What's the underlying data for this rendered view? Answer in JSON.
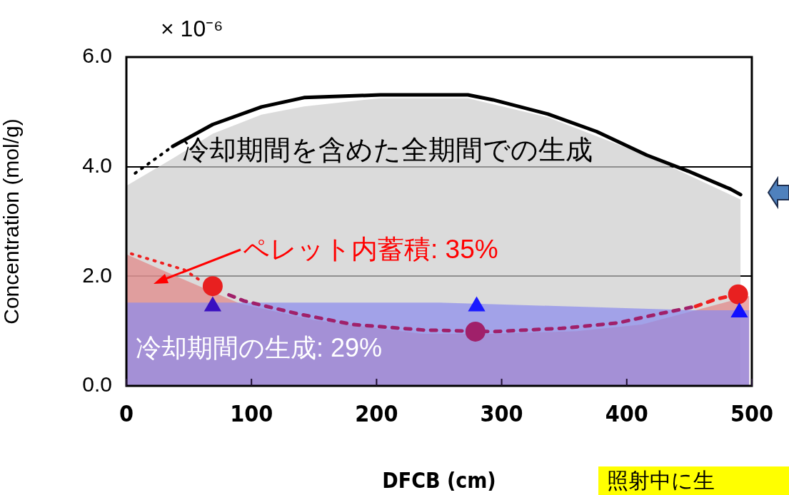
{
  "chart_data": {
    "type": "area",
    "xlabel": "DFCB (cm)",
    "ylabel": "Concentration (mol/g)",
    "xlim": [
      0,
      500
    ],
    "xticks": [
      0,
      100,
      200,
      300,
      400,
      500
    ],
    "ylim": [
      0,
      6
    ],
    "yticks": [
      {
        "value": 0,
        "label": "0.0"
      },
      {
        "value": 2,
        "label": "2.0"
      },
      {
        "value": 4,
        "label": "4.0"
      },
      {
        "value": 6,
        "label": "6.0"
      }
    ],
    "grid": "y",
    "legend": false,
    "series": [
      {
        "color": "#cccccc",
        "x": [
          0,
          37,
          69,
          108,
          142,
          203,
          273,
          337,
          416,
          449,
          491
        ],
        "values": [
          3.65,
          4.15,
          4.6,
          4.95,
          5.1,
          5.25,
          5.25,
          4.9,
          4.2,
          3.85,
          3.4
        ]
      },
      {
        "color": "#e38585",
        "x": [
          0,
          45,
          91,
          150,
          201,
          237,
          293,
          360,
          412,
          455,
          498
        ],
        "values": [
          2.4,
          1.95,
          1.5,
          1.2,
          1.05,
          0.95,
          0.95,
          1.0,
          1.12,
          1.38,
          1.64
        ]
      },
      {
        "color": "#8a8aee",
        "x": [
          0,
          250,
          455,
          498
        ],
        "values": [
          1.52,
          1.52,
          1.38,
          1.38
        ]
      },
      {
        "type": "line",
        "color": "#000000",
        "line_style": "dotted",
        "x": [
          7,
          37
        ],
        "values": [
          3.88,
          4.37
        ]
      },
      {
        "type": "line",
        "color": "#000000",
        "line_style": "solid",
        "x": [
          37,
          69,
          108,
          142,
          203,
          273,
          293,
          337,
          376,
          416,
          449,
          483,
          491
        ],
        "values": [
          4.37,
          4.77,
          5.09,
          5.26,
          5.31,
          5.31,
          5.22,
          4.96,
          4.64,
          4.21,
          3.92,
          3.59,
          3.49
        ]
      },
      {
        "type": "line",
        "color": "#ee2020",
        "line_style": "dotted",
        "x": [
          4,
          46,
          58
        ],
        "values": [
          2.41,
          2.12,
          1.94
        ]
      },
      {
        "type": "line",
        "color": "#a0206a",
        "line_style": "dashed",
        "x": [
          82,
          94,
          136,
          181,
          237,
          293,
          348,
          393,
          427,
          455
        ],
        "values": [
          1.66,
          1.55,
          1.32,
          1.12,
          1.02,
          0.99,
          1.05,
          1.15,
          1.32,
          1.45
        ]
      },
      {
        "type": "line",
        "color": "#ee2020",
        "line_style": "dashed",
        "x": [
          455,
          471,
          489
        ],
        "values": [
          1.45,
          1.58,
          1.67
        ]
      },
      {
        "type": "scatter",
        "marker": "circle",
        "colors": [
          "#e82020",
          "#a0206a",
          "#e82020"
        ],
        "x": [
          69,
          279,
          489
        ],
        "values": [
          1.82,
          0.99,
          1.67
        ]
      },
      {
        "type": "scatter",
        "marker": "triangle",
        "colors": [
          "#3a10c0",
          "#1a1aff",
          "#1010ff"
        ],
        "x": [
          69,
          280,
          490
        ],
        "values": [
          1.45,
          1.45,
          1.34
        ]
      }
    ],
    "annotations": [
      "× 10⁻⁶",
      "冷却期間を含めた全期間での生成",
      "ペレット内蓄積: 35%",
      "冷却期間の生成: 29%",
      "照射中に生"
    ]
  }
}
